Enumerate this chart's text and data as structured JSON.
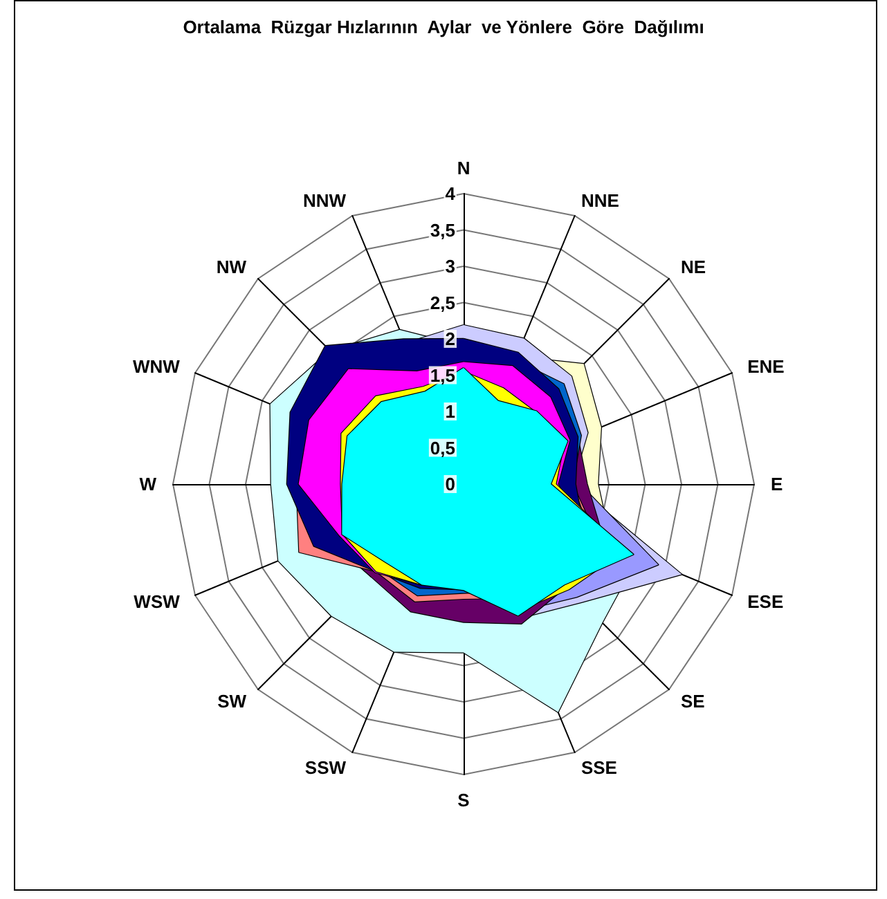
{
  "chart_data": {
    "type": "radar",
    "title": "Ortalama  Rüzgar Hızlarının  Aylar  ve Yönlere  Göre  Dağılımı",
    "categories": [
      "N",
      "NNE",
      "NE",
      "ENE",
      "E",
      "ESE",
      "SE",
      "SSE",
      "S",
      "SSW",
      "SW",
      "WSW",
      "W",
      "WNW",
      "NW",
      "NNW"
    ],
    "ylim": [
      0,
      4
    ],
    "yticks": [
      0,
      {
        "value": 0.5,
        "label": "0,5"
      },
      1,
      {
        "value": 1.5,
        "label": "1,5"
      },
      2,
      {
        "value": 2.5,
        "label": "2,5"
      },
      3,
      {
        "value": 3.5,
        "label": "3,5"
      },
      4
    ],
    "series": [
      {
        "color": "#ccffff",
        "values": [
          1.9,
          1.8,
          1.8,
          1.7,
          1.6,
          2.6,
          2.7,
          3.4,
          2.32,
          2.5,
          2.57,
          2.76,
          2.65,
          2.88,
          2.6,
          2.3
        ]
      },
      {
        "color": "#ffffcc",
        "values": [
          1.9,
          1.9,
          2.34,
          2.05,
          1.85,
          2.2,
          1.9,
          1.8,
          1.6,
          1.6,
          1.7,
          1.9,
          2.0,
          2.2,
          2.2,
          1.9
        ]
      },
      {
        "color": "#ccccff",
        "values": [
          2.19,
          2.17,
          2.1,
          1.85,
          1.5,
          3.25,
          2.3,
          2.0,
          1.7,
          1.7,
          1.8,
          2.0,
          2.2,
          2.3,
          2.4,
          2.1
        ]
      },
      {
        "color": "#9999ff",
        "values": [
          1.8,
          1.8,
          1.8,
          1.7,
          1.6,
          2.9,
          2.2,
          1.9,
          1.6,
          1.6,
          1.7,
          1.9,
          2.1,
          2.2,
          2.3,
          2.0
        ]
      },
      {
        "color": "#660066",
        "values": [
          1.8,
          1.8,
          1.8,
          1.7,
          1.7,
          2.1,
          2.0,
          2.08,
          1.9,
          1.9,
          1.8,
          2.0,
          2.4,
          2.5,
          2.5,
          2.1
        ]
      },
      {
        "color": "#ff8080",
        "values": [
          1.7,
          1.7,
          1.7,
          1.6,
          1.5,
          2.0,
          1.9,
          1.7,
          1.58,
          1.75,
          1.7,
          2.45,
          2.3,
          2.3,
          2.3,
          1.9
        ]
      },
      {
        "color": "#0066cc",
        "values": [
          1.8,
          1.85,
          1.95,
          1.75,
          1.5,
          1.9,
          1.8,
          1.6,
          1.5,
          1.66,
          1.65,
          2.2,
          2.2,
          2.3,
          2.3,
          1.9
        ]
      },
      {
        "color": "#000080",
        "values": [
          2.0,
          1.96,
          1.85,
          1.7,
          1.54,
          1.8,
          1.8,
          1.6,
          1.45,
          1.55,
          1.7,
          2.23,
          2.43,
          2.58,
          2.69,
          2.16
        ]
      },
      {
        "color": "#ff00ff",
        "values": [
          1.68,
          1.76,
          1.69,
          1.58,
          1.3,
          1.8,
          1.7,
          1.6,
          1.4,
          1.5,
          1.72,
          1.85,
          2.27,
          2.3,
          2.24,
          1.68
        ]
      },
      {
        "color": "#ffff00",
        "values": [
          1.55,
          1.43,
          1.4,
          1.5,
          1.27,
          2.4,
          2.05,
          1.9,
          1.4,
          1.5,
          1.7,
          1.8,
          1.69,
          1.82,
          1.71,
          1.45
        ]
      },
      {
        "color": "#00ffff",
        "values": [
          1.6,
          1.24,
          1.42,
          1.55,
          1.2,
          2.53,
          1.96,
          1.96,
          1.46,
          1.5,
          1.52,
          1.81,
          1.67,
          1.73,
          1.6,
          1.38
        ]
      }
    ]
  }
}
